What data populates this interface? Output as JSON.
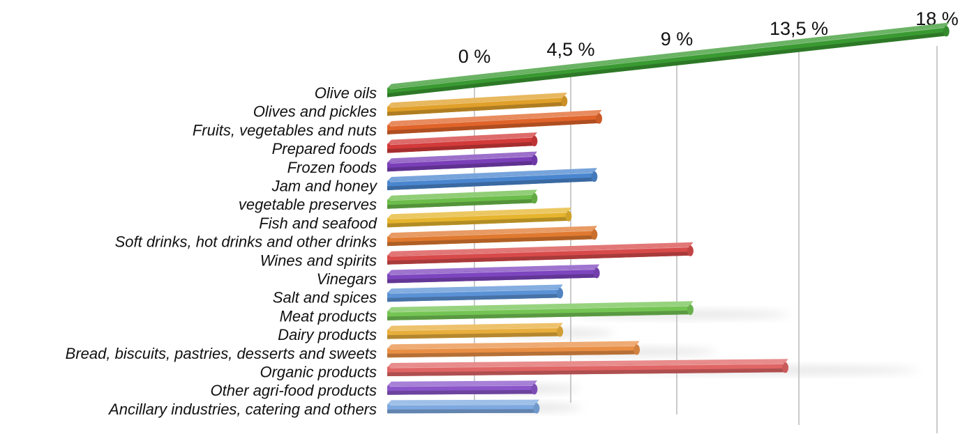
{
  "chart_data": {
    "type": "bar",
    "orientation": "horizontal",
    "perspective": "3d",
    "categories": [
      "Olive oils",
      "Olives and pickles",
      "Fruits, vegetables and nuts",
      "Prepared foods",
      "Frozen foods",
      "Jam and honey",
      "vegetable preserves",
      "Fish and seafood",
      "Soft drinks, hot drinks and other drinks",
      "Wines and spirits",
      "Vinegars",
      "Salt and spices",
      "Meat products",
      "Dairy products",
      "Bread, biscuits, pastries, desserts and sweets",
      "Organic products",
      "Other agri-food products",
      "Ancillary industries, catering and others"
    ],
    "values": [
      18.3,
      4.2,
      5.7,
      2.8,
      2.8,
      5.5,
      2.8,
      4.4,
      5.5,
      9.5,
      5.6,
      4.0,
      9.5,
      4.0,
      7.3,
      13.0,
      2.8,
      2.9
    ],
    "colors": [
      "#3a9a32",
      "#e0a02a",
      "#e0642a",
      "#d33a3a",
      "#7a3fb8",
      "#4a86cf",
      "#6cbd4a",
      "#e6b52e",
      "#e07a30",
      "#d84a4a",
      "#7d45bf",
      "#5b92d6",
      "#74c454",
      "#e8ae3c",
      "#e98f45",
      "#e06565",
      "#8a56c9",
      "#7ea9e0"
    ],
    "ticks": [
      "0 %",
      "4,5 %",
      "9 %",
      "13,5 %",
      "18 %"
    ],
    "xlim": [
      0,
      18
    ],
    "grid": true,
    "title": "",
    "xlabel": "",
    "ylabel": ""
  }
}
